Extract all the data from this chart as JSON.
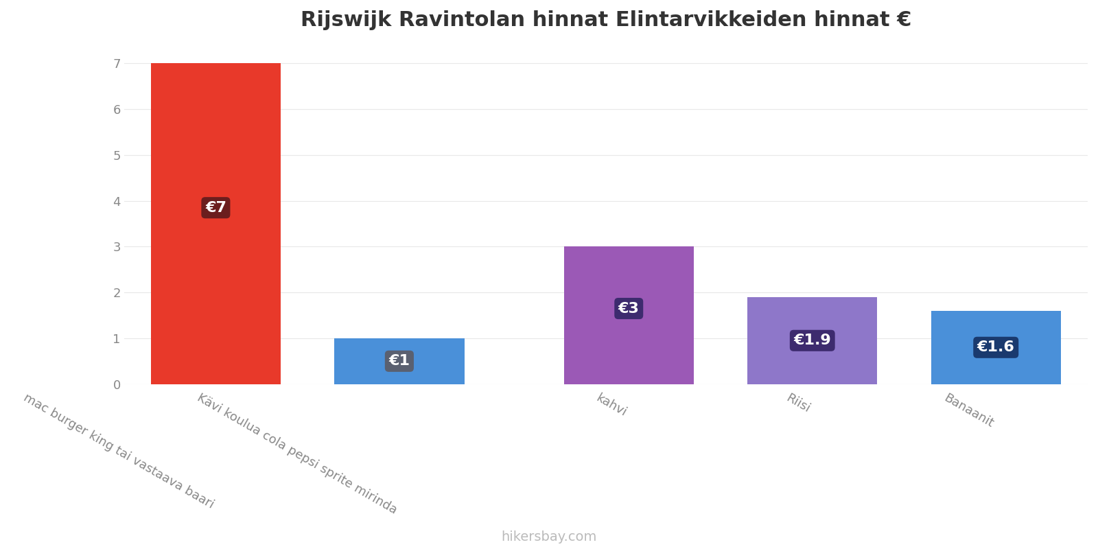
{
  "title": "Rijswijk Ravintolan hinnat Elintarvikkeiden hinnat €",
  "categories": [
    "mac burger king tai vastaava baari",
    "Kävi koulua cola pepsi sprite mirinda",
    "kahvi",
    "Riisi",
    "Banaanit"
  ],
  "values": [
    7,
    1,
    3,
    1.9,
    1.6
  ],
  "bar_colors": [
    "#e8392a",
    "#4a90d9",
    "#9b59b6",
    "#8e77c9",
    "#4a90d9"
  ],
  "label_texts": [
    "€7",
    "€1",
    "€3",
    "€1.9",
    "€1.6"
  ],
  "label_bg_colors": [
    "#6b1e1e",
    "#5a6070",
    "#3d2b6e",
    "#3d2b6e",
    "#1a3a6e"
  ],
  "x_positions": [
    0,
    1.2,
    2.7,
    3.9,
    5.1
  ],
  "ylim": [
    0,
    7.4
  ],
  "yticks": [
    0,
    1,
    2,
    3,
    4,
    5,
    6,
    7
  ],
  "watermark": "hikersbay.com",
  "title_fontsize": 22,
  "label_fontsize": 16,
  "tick_fontsize": 13,
  "watermark_fontsize": 14,
  "background_color": "#ffffff",
  "bar_width": 0.85
}
